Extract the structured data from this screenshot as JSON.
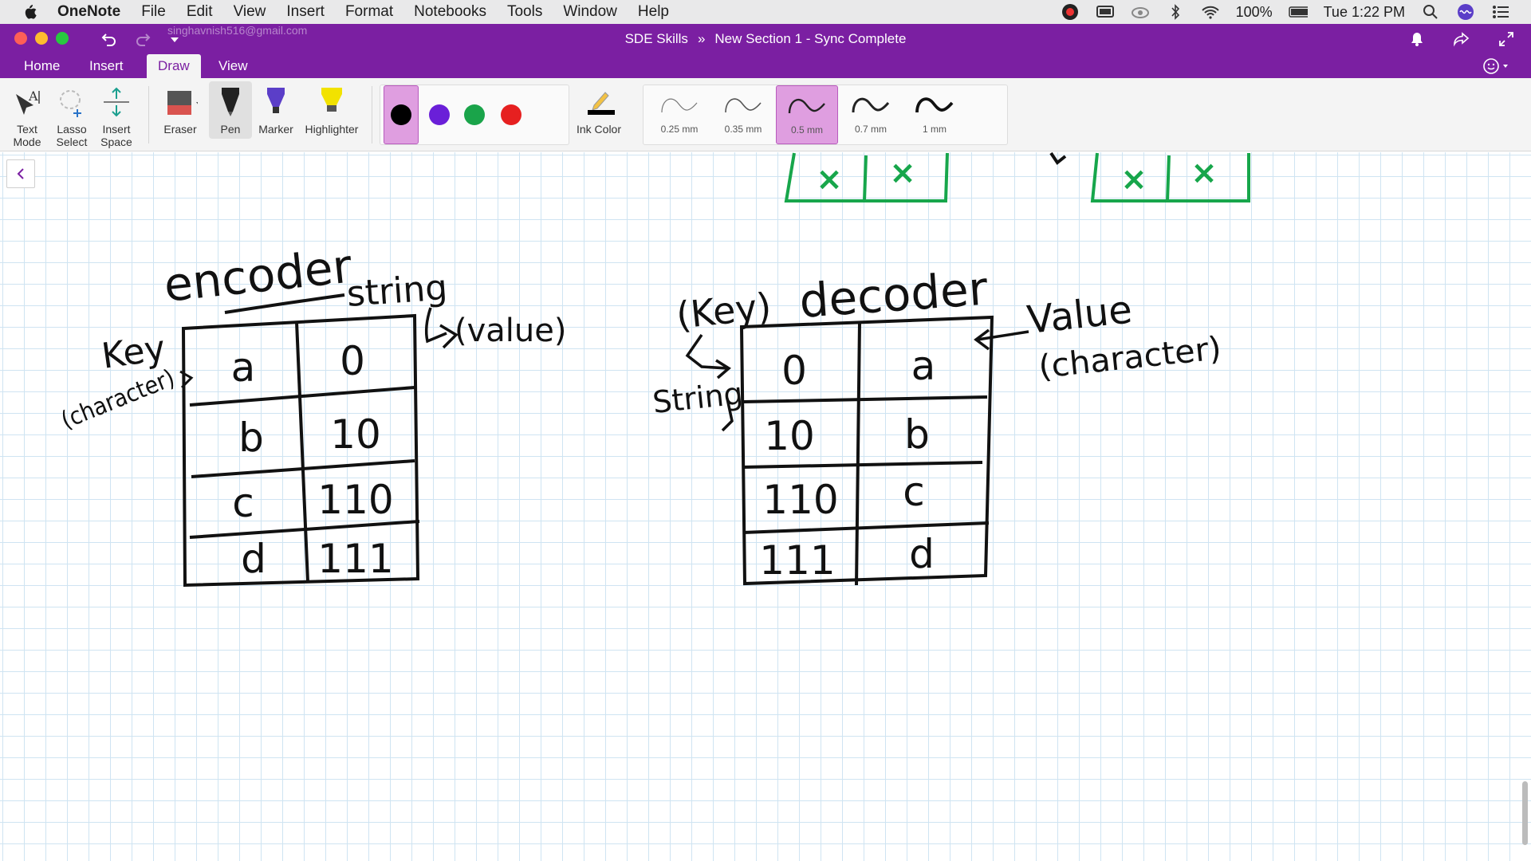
{
  "menubar": {
    "app_name": "OneNote",
    "items": [
      "File",
      "Edit",
      "View",
      "Insert",
      "Format",
      "Notebooks",
      "Tools",
      "Window",
      "Help"
    ],
    "battery": "100%",
    "clock": "Tue 1:22 PM"
  },
  "titlebar": {
    "account_email": "singhavnish516@gmail.com",
    "notebook": "SDE Skills",
    "separator": "»",
    "section_status": "New Section 1 - Sync Complete"
  },
  "tabs": [
    "Home",
    "Insert",
    "Draw",
    "View"
  ],
  "ribbon": {
    "text_mode": "Text Mode",
    "lasso_select": "Lasso Select",
    "insert_space": "Insert Space",
    "eraser": "Eraser",
    "pen": "Pen",
    "marker": "Marker",
    "highlighter": "Highlighter",
    "ink_color": "Ink Color",
    "colors": [
      "#000000",
      "#6a1fd8",
      "#1aa44a",
      "#e62020"
    ],
    "selected_color": "#000000",
    "widths": [
      "0.25 mm",
      "0.35 mm",
      "0.5 mm",
      "0.7 mm",
      "1 mm"
    ],
    "selected_width": "0.5 mm",
    "accent": "#7b1fa2"
  },
  "page": {
    "encoder": {
      "title": "encoder",
      "label_top_right": "string",
      "label_value": "(value)",
      "label_key": "Key",
      "label_key_sub": "(character)",
      "rows": [
        [
          "a",
          "0"
        ],
        [
          "b",
          "10"
        ],
        [
          "c",
          "110"
        ],
        [
          "d",
          "111"
        ]
      ]
    },
    "decoder": {
      "label_key": "(Key)",
      "title": "decoder",
      "label_left": "String",
      "label_value": "Value",
      "label_value_sub": "(character)",
      "rows": [
        [
          "0",
          "a"
        ],
        [
          "10",
          "b"
        ],
        [
          "110",
          "c"
        ],
        [
          "111",
          "d"
        ]
      ]
    },
    "top_marks": [
      "×",
      "×",
      "×",
      "×"
    ]
  }
}
